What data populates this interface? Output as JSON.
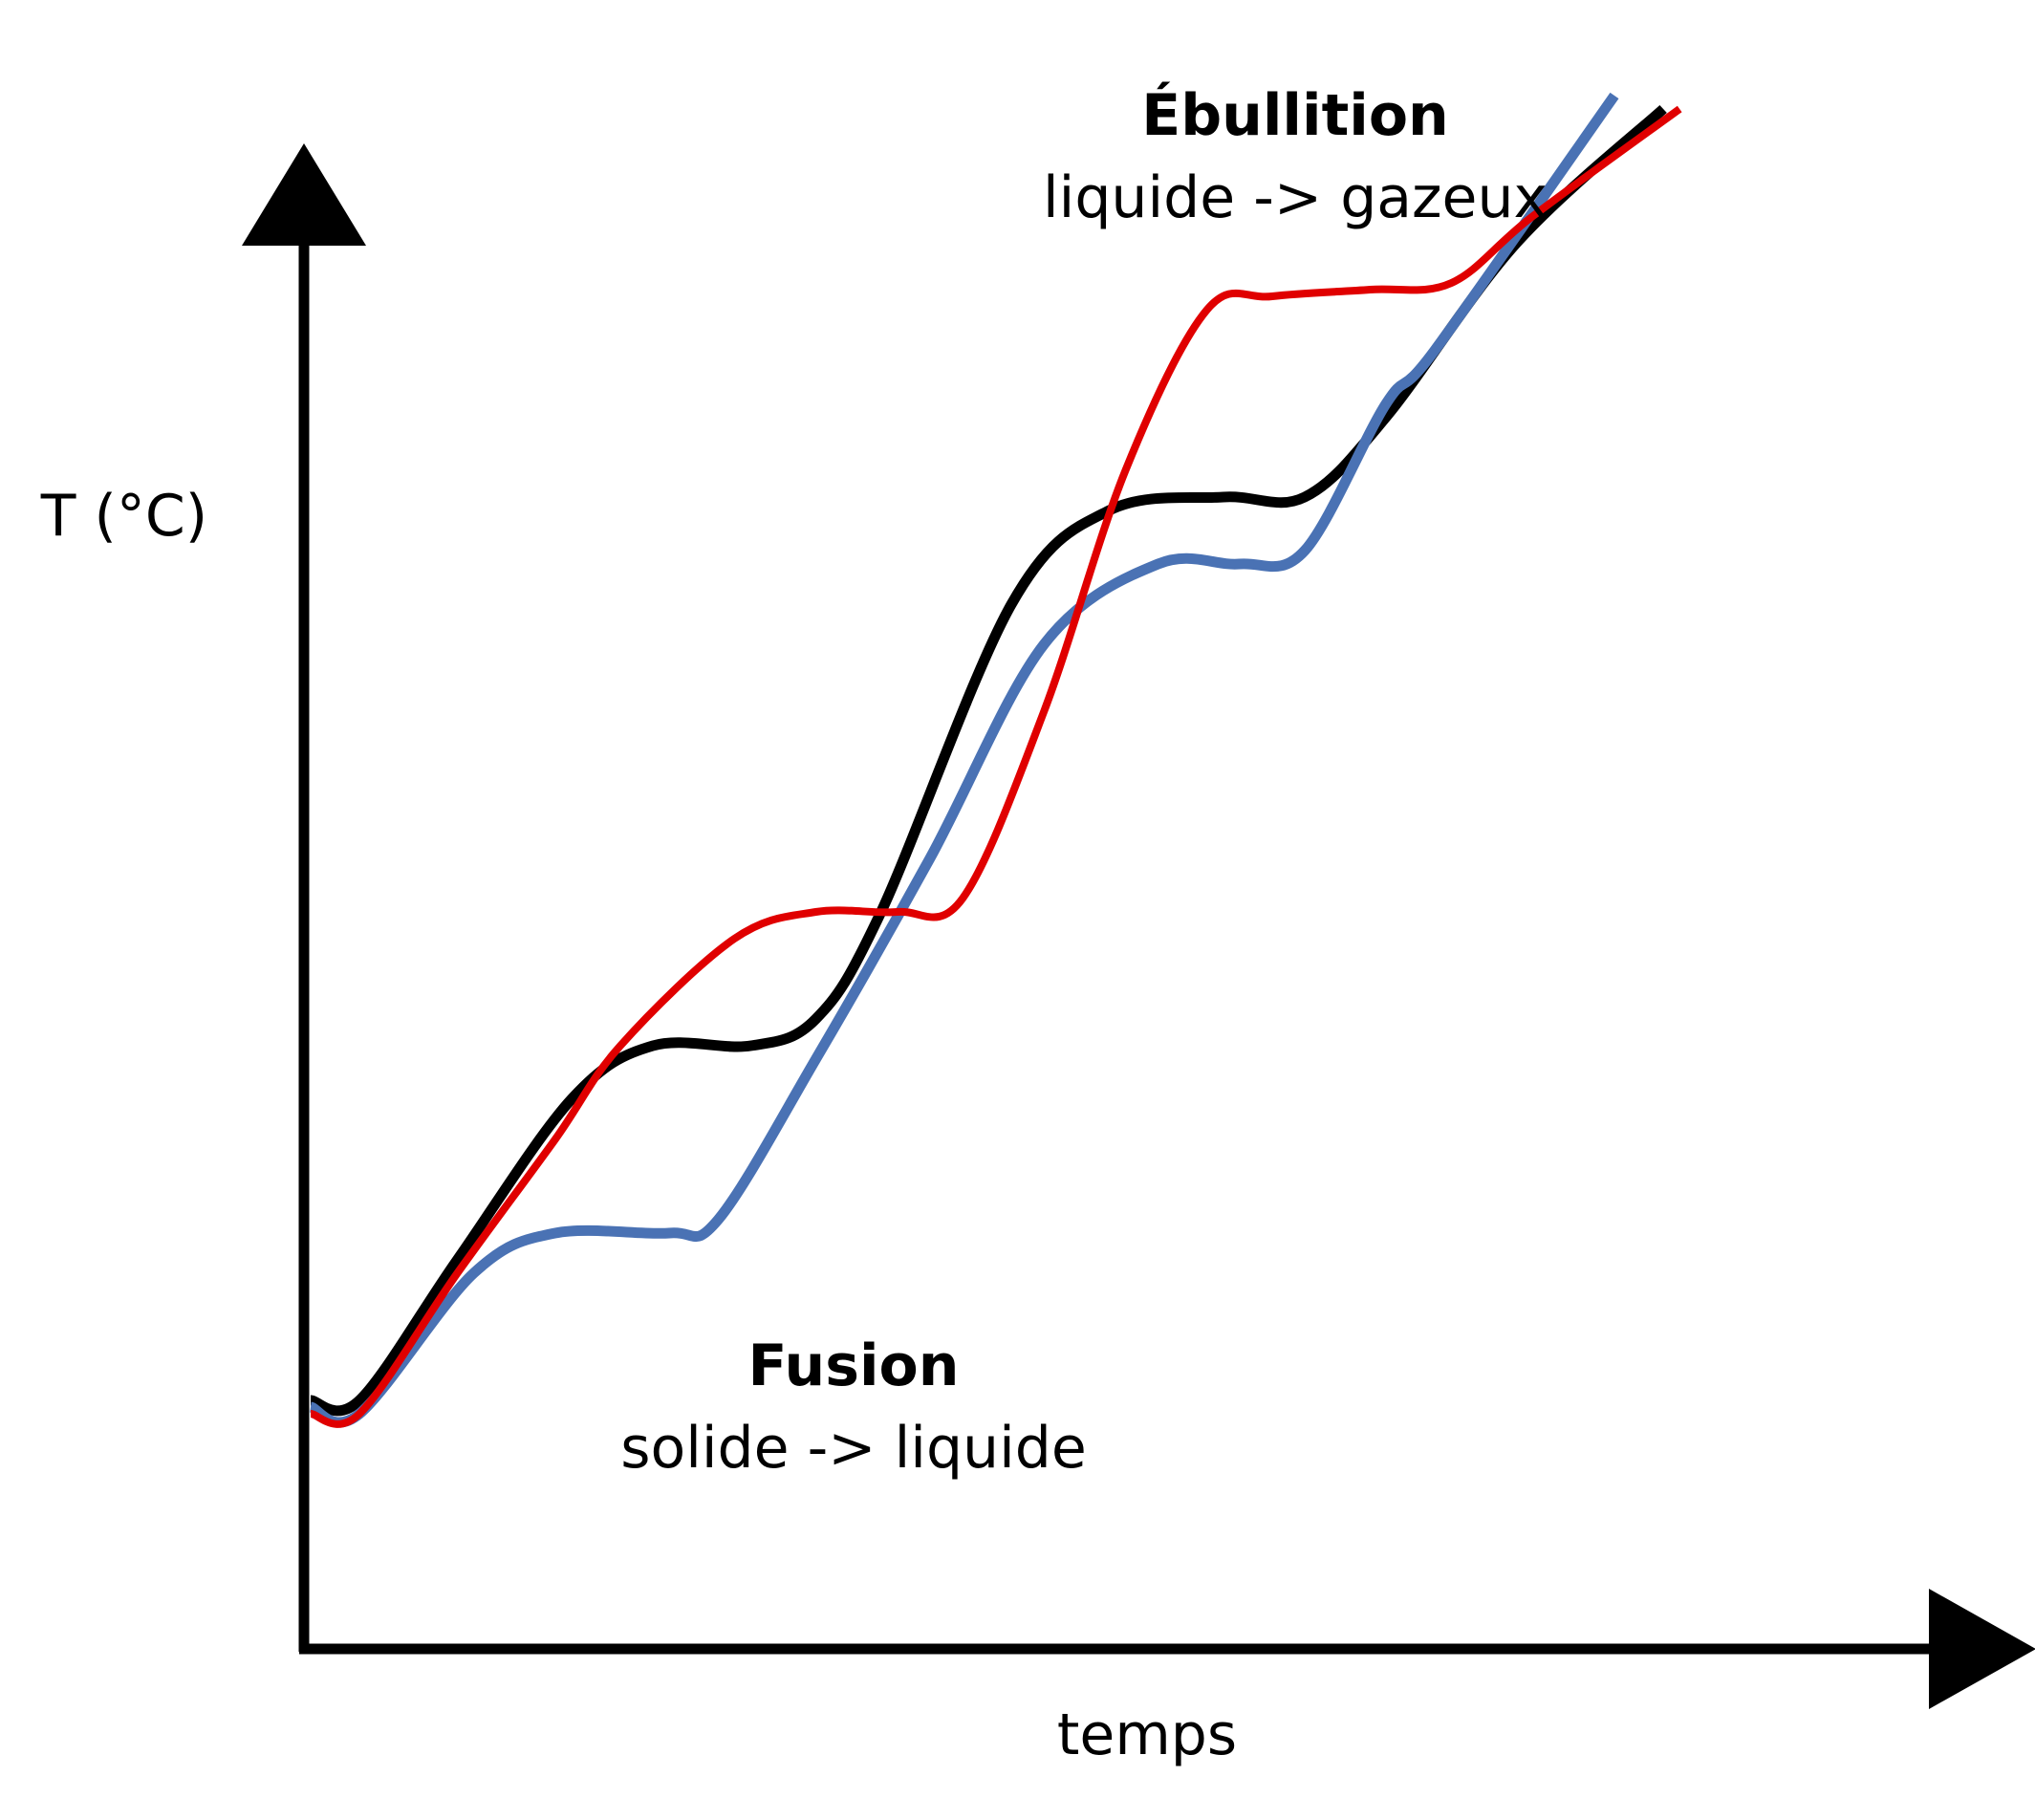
{
  "chart_data": {
    "type": "line",
    "title": "",
    "xlabel": "temps",
    "ylabel": "T (°C)",
    "xlim": [
      0,
      100
    ],
    "ylim": [
      0,
      100
    ],
    "grid": false,
    "legend": "none",
    "annotations": [
      {
        "id": "fusion",
        "title": "Fusion",
        "text": "solide -> liquide",
        "x": 31,
        "y": 11
      },
      {
        "id": "ebullition",
        "title": "Ébullition",
        "text": "liquide -> gazeux",
        "x": 57,
        "y": 91
      }
    ],
    "series": [
      {
        "color": "#000000",
        "points": [
          [
            0,
            12.5
          ],
          [
            3,
            12.5
          ],
          [
            9,
            23
          ],
          [
            16,
            35
          ],
          [
            21,
            39
          ],
          [
            27,
            39
          ],
          [
            31,
            41
          ],
          [
            35,
            49
          ],
          [
            43,
            72
          ],
          [
            49,
            79
          ],
          [
            56,
            80
          ],
          [
            61,
            80
          ],
          [
            66,
            86
          ],
          [
            74,
            99
          ],
          [
            83,
            109
          ]
        ]
      },
      {
        "color": "#4a72b4",
        "points": [
          [
            0,
            12
          ],
          [
            3,
            11.5
          ],
          [
            10,
            22
          ],
          [
            15,
            25
          ],
          [
            22,
            25
          ],
          [
            25,
            26
          ],
          [
            31,
            38
          ],
          [
            38,
            53
          ],
          [
            45,
            69
          ],
          [
            52,
            75
          ],
          [
            57,
            75
          ],
          [
            61,
            76
          ],
          [
            66,
            87
          ],
          [
            69,
            91
          ],
          [
            80,
            110
          ]
        ]
      },
      {
        "color": "#e00000",
        "points": [
          [
            0,
            11.5
          ],
          [
            3,
            11.5
          ],
          [
            9,
            22
          ],
          [
            15,
            32
          ],
          [
            19,
            39
          ],
          [
            26,
            47
          ],
          [
            31,
            49
          ],
          [
            36,
            49
          ],
          [
            40,
            50
          ],
          [
            45,
            64
          ],
          [
            50,
            82
          ],
          [
            55,
            94
          ],
          [
            59,
            95
          ],
          [
            65,
            95.5
          ],
          [
            70,
            96
          ],
          [
            75,
            101
          ],
          [
            84,
            109
          ]
        ]
      }
    ]
  }
}
